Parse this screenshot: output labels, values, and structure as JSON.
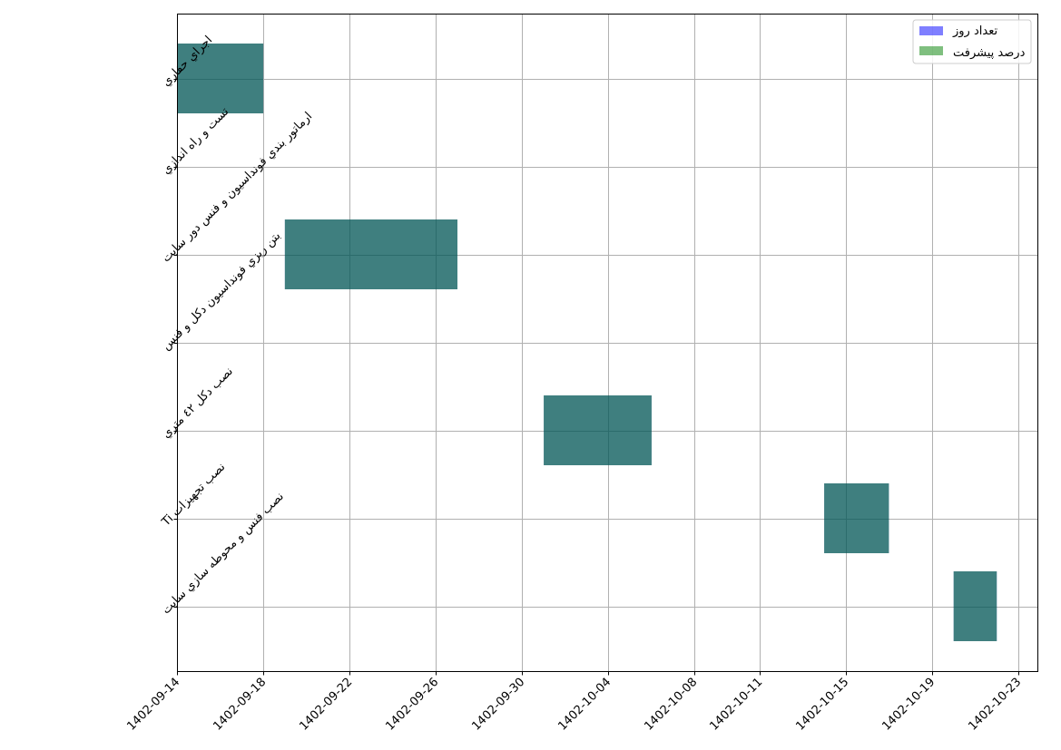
{
  "chart_data": {
    "type": "gantt",
    "tasks": [
      "اجراي حفاري",
      "تست و راه اندازي",
      "ارماتور بندي فونداسيون و فنس دور سايت",
      "بتن ريزي فونداسيون دكل و فنس",
      "نصب دكل ٤٢ متري",
      "نصب تجهيزات Ti",
      "نصب فنس و محوطه سازي سايت"
    ],
    "x_ticks": [
      "1402-09-14",
      "1402-09-18",
      "1402-09-22",
      "1402-09-26",
      "1402-09-30",
      "1402-10-04",
      "1402-10-08",
      "1402-10-11",
      "1402-10-15",
      "1402-10-19",
      "1402-10-23"
    ],
    "series": [
      {
        "name": "تعداد روز",
        "color": "#0000ff",
        "opacity": 0.5,
        "bars": [
          {
            "task": "اجراي حفاري",
            "start": "1402-09-14",
            "end": "1402-09-18"
          },
          {
            "task": "ارماتور بندي فونداسيون و فنس دور سايت",
            "start": "1402-09-19",
            "end": "1402-09-27"
          },
          {
            "task": "نصب دكل ٤٢ متري",
            "start": "1402-10-01",
            "end": "1402-10-06"
          },
          {
            "task": "نصب تجهيزات Ti",
            "start": "1402-10-14",
            "end": "1402-10-17"
          },
          {
            "task": "نصب فنس و محوطه سازي سايت",
            "start": "1402-10-20",
            "end": "1402-10-22"
          }
        ]
      },
      {
        "name": "درصد پيشرفت",
        "color": "#008000",
        "opacity": 0.5,
        "bars": [
          {
            "task": "اجراي حفاري",
            "start": "1402-09-14",
            "end": "1402-09-18"
          },
          {
            "task": "ارماتور بندي فونداسيون و فنس دور سايت",
            "start": "1402-09-19",
            "end": "1402-09-27"
          },
          {
            "task": "نصب دكل ٤٢ متري",
            "start": "1402-10-01",
            "end": "1402-10-06"
          },
          {
            "task": "نصب تجهيزات Ti",
            "start": "1402-10-14",
            "end": "1402-10-17"
          },
          {
            "task": "نصب فنس و محوطه سازي سايت",
            "start": "1402-10-20",
            "end": "1402-10-22"
          }
        ]
      }
    ],
    "grid": true,
    "legend_position": "top-right"
  }
}
